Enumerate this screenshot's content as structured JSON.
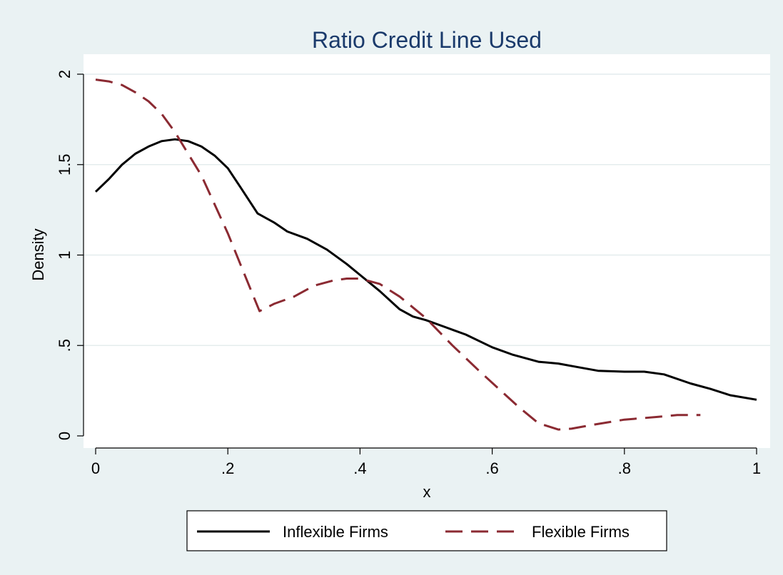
{
  "chart_data": {
    "type": "line",
    "title": "Ratio Credit Line Used",
    "xlabel": "x",
    "ylabel": "Density",
    "xlim": [
      0,
      1
    ],
    "ylim": [
      0,
      2
    ],
    "x_ticks": [
      0,
      0.2,
      0.4,
      0.6,
      0.8,
      1
    ],
    "x_tick_labels": [
      "0",
      ".2",
      ".4",
      ".6",
      ".8",
      "1"
    ],
    "y_ticks": [
      0,
      0.5,
      1,
      1.5,
      2
    ],
    "y_tick_labels": [
      "0",
      ".5",
      "1",
      "1.5",
      "2"
    ],
    "grid": true,
    "legend_position": "bottom",
    "colors": {
      "background": "#eaf2f3",
      "plot_area": "#ffffff",
      "title": "#1a3a6b",
      "inflexible": "#000000",
      "flexible": "#8b2a32"
    },
    "series": [
      {
        "name": "Inflexible Firms",
        "style": "solid",
        "color": "#000000",
        "points": [
          [
            0.0,
            1.35
          ],
          [
            0.02,
            1.42
          ],
          [
            0.04,
            1.5
          ],
          [
            0.06,
            1.56
          ],
          [
            0.08,
            1.6
          ],
          [
            0.1,
            1.63
          ],
          [
            0.12,
            1.64
          ],
          [
            0.14,
            1.63
          ],
          [
            0.16,
            1.6
          ],
          [
            0.18,
            1.55
          ],
          [
            0.2,
            1.48
          ],
          [
            0.22,
            1.37
          ],
          [
            0.245,
            1.23
          ],
          [
            0.27,
            1.18
          ],
          [
            0.29,
            1.13
          ],
          [
            0.32,
            1.09
          ],
          [
            0.35,
            1.03
          ],
          [
            0.38,
            0.95
          ],
          [
            0.4,
            0.89
          ],
          [
            0.43,
            0.8
          ],
          [
            0.46,
            0.7
          ],
          [
            0.48,
            0.66
          ],
          [
            0.5,
            0.64
          ],
          [
            0.53,
            0.6
          ],
          [
            0.56,
            0.56
          ],
          [
            0.6,
            0.49
          ],
          [
            0.63,
            0.45
          ],
          [
            0.67,
            0.41
          ],
          [
            0.7,
            0.4
          ],
          [
            0.73,
            0.38
          ],
          [
            0.76,
            0.36
          ],
          [
            0.8,
            0.355
          ],
          [
            0.83,
            0.355
          ],
          [
            0.86,
            0.34
          ],
          [
            0.9,
            0.29
          ],
          [
            0.93,
            0.26
          ],
          [
            0.96,
            0.225
          ],
          [
            1.0,
            0.2
          ]
        ]
      },
      {
        "name": "Flexible Firms",
        "style": "dashed",
        "color": "#8b2a32",
        "points": [
          [
            0.0,
            1.97
          ],
          [
            0.02,
            1.96
          ],
          [
            0.04,
            1.94
          ],
          [
            0.06,
            1.9
          ],
          [
            0.08,
            1.85
          ],
          [
            0.1,
            1.78
          ],
          [
            0.12,
            1.68
          ],
          [
            0.14,
            1.56
          ],
          [
            0.16,
            1.44
          ],
          [
            0.18,
            1.28
          ],
          [
            0.2,
            1.12
          ],
          [
            0.22,
            0.94
          ],
          [
            0.248,
            0.69
          ],
          [
            0.27,
            0.73
          ],
          [
            0.3,
            0.77
          ],
          [
            0.33,
            0.83
          ],
          [
            0.36,
            0.86
          ],
          [
            0.38,
            0.87
          ],
          [
            0.4,
            0.87
          ],
          [
            0.43,
            0.84
          ],
          [
            0.46,
            0.77
          ],
          [
            0.5,
            0.65
          ],
          [
            0.54,
            0.5
          ],
          [
            0.58,
            0.36
          ],
          [
            0.61,
            0.26
          ],
          [
            0.64,
            0.16
          ],
          [
            0.67,
            0.07
          ],
          [
            0.7,
            0.035
          ],
          [
            0.72,
            0.04
          ],
          [
            0.75,
            0.06
          ],
          [
            0.8,
            0.09
          ],
          [
            0.85,
            0.105
          ],
          [
            0.88,
            0.115
          ],
          [
            0.915,
            0.115
          ]
        ]
      }
    ]
  }
}
